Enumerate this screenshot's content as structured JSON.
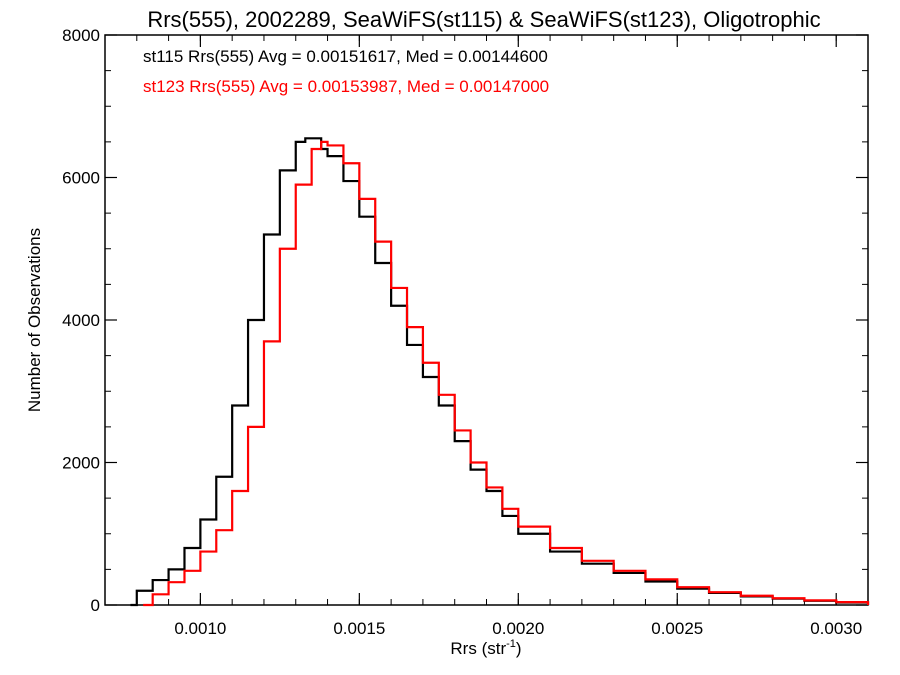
{
  "chart_data": {
    "type": "line",
    "title": "Rrs(555), 2002289, SeaWiFS(st115) & SeaWiFS(st123), Oligotrophic",
    "xlabel_main": "Rrs (str",
    "xlabel_sup": "-1",
    "xlabel_close": ")",
    "ylabel": "Number of Observations",
    "xlim": [
      0.0007,
      0.0031
    ],
    "ylim": [
      0,
      8000
    ],
    "x_ticks": [
      0.001,
      0.0015,
      0.002,
      0.0025,
      0.003
    ],
    "x_tick_labels": [
      "0.0010",
      "0.0015",
      "0.0020",
      "0.0025",
      "0.0030"
    ],
    "y_ticks": [
      0,
      2000,
      4000,
      6000,
      8000
    ],
    "y_tick_labels": [
      "0",
      "2000",
      "4000",
      "6000",
      "8000"
    ],
    "series": [
      {
        "name": "st115",
        "legend": "st115 Rrs(555) Avg = 0.00151617, Med = 0.00144600",
        "color": "#000000",
        "x": [
          0.00078,
          0.0008,
          0.00085,
          0.0009,
          0.00095,
          0.001,
          0.00105,
          0.0011,
          0.00115,
          0.0012,
          0.00125,
          0.0013,
          0.00133,
          0.00135,
          0.00138,
          0.0014,
          0.00145,
          0.0015,
          0.00155,
          0.0016,
          0.00165,
          0.0017,
          0.00175,
          0.0018,
          0.00185,
          0.0019,
          0.00195,
          0.002,
          0.0021,
          0.0022,
          0.0023,
          0.0024,
          0.0025,
          0.0026,
          0.0027,
          0.0028,
          0.0029,
          0.003,
          0.0031
        ],
        "y": [
          0,
          200,
          350,
          500,
          800,
          1200,
          1800,
          2800,
          4000,
          5200,
          6100,
          6500,
          6550,
          6550,
          6400,
          6300,
          5950,
          5450,
          4800,
          4200,
          3650,
          3200,
          2800,
          2300,
          1900,
          1600,
          1250,
          1000,
          750,
          580,
          450,
          330,
          230,
          170,
          120,
          90,
          60,
          35,
          0
        ]
      },
      {
        "name": "st123",
        "legend": "st123 Rrs(555) Avg = 0.00153987, Med = 0.00147000",
        "color": "#ff0000",
        "x": [
          0.00082,
          0.00085,
          0.0009,
          0.00095,
          0.001,
          0.00105,
          0.0011,
          0.00115,
          0.0012,
          0.00125,
          0.0013,
          0.00135,
          0.00138,
          0.0014,
          0.00145,
          0.0015,
          0.00155,
          0.0016,
          0.00165,
          0.0017,
          0.00175,
          0.0018,
          0.00185,
          0.0019,
          0.00195,
          0.002,
          0.0021,
          0.0022,
          0.0023,
          0.0024,
          0.0025,
          0.0026,
          0.0027,
          0.0028,
          0.0029,
          0.003,
          0.0031
        ],
        "y": [
          0,
          150,
          320,
          480,
          750,
          1050,
          1600,
          2500,
          3700,
          5000,
          5900,
          6400,
          6500,
          6450,
          6200,
          5700,
          5100,
          4450,
          3900,
          3400,
          2950,
          2450,
          2000,
          1650,
          1350,
          1100,
          800,
          620,
          480,
          360,
          250,
          180,
          130,
          95,
          65,
          40,
          0
        ]
      }
    ],
    "grid": false,
    "legend_placement": "top-left"
  }
}
